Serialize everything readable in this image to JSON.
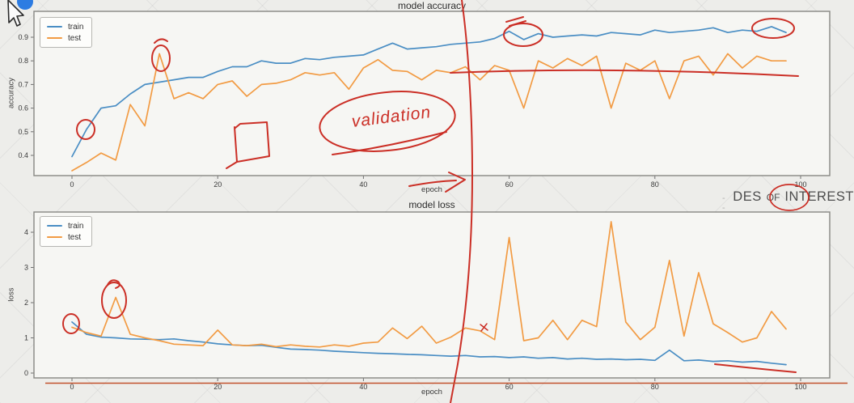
{
  "watermark": {
    "dashes": "- -",
    "word1": "DES",
    "word2": "OF",
    "word3": "INTEREST"
  },
  "annotations": {
    "validation_text": "validation"
  },
  "colors": {
    "train": "#4a8ec4",
    "test": "#f29b43",
    "ink": "#cb2f26",
    "underline": "#c2512c"
  },
  "chart_data": [
    {
      "type": "line",
      "title": "model accuracy",
      "xlabel": "epoch",
      "ylabel": "accuracy",
      "x_ticks": [
        0,
        20,
        40,
        60,
        80,
        100
      ],
      "y_ticks": [
        0.4,
        0.5,
        0.6,
        0.7,
        0.8,
        0.9
      ],
      "xlim": [
        -5,
        104
      ],
      "ylim": [
        0.32,
        1.01
      ],
      "grid": false,
      "legend": {
        "position": "upper left"
      },
      "x_step": 2,
      "series": [
        {
          "name": "train",
          "color": "#4a8ec4",
          "values": [
            0.395,
            0.51,
            0.6,
            0.61,
            0.66,
            0.7,
            0.71,
            0.72,
            0.73,
            0.73,
            0.755,
            0.775,
            0.775,
            0.8,
            0.79,
            0.79,
            0.81,
            0.805,
            0.815,
            0.82,
            0.825,
            0.85,
            0.875,
            0.85,
            0.855,
            0.86,
            0.87,
            0.875,
            0.88,
            0.895,
            0.925,
            0.89,
            0.915,
            0.9,
            0.905,
            0.91,
            0.905,
            0.92,
            0.915,
            0.91,
            0.93,
            0.92,
            0.925,
            0.93,
            0.94,
            0.92,
            0.93,
            0.925,
            0.945,
            0.92
          ]
        },
        {
          "name": "test",
          "color": "#f29b43",
          "values": [
            0.335,
            0.37,
            0.41,
            0.38,
            0.615,
            0.525,
            0.83,
            0.64,
            0.665,
            0.64,
            0.7,
            0.715,
            0.65,
            0.7,
            0.705,
            0.72,
            0.75,
            0.74,
            0.75,
            0.68,
            0.77,
            0.805,
            0.76,
            0.755,
            0.72,
            0.76,
            0.75,
            0.775,
            0.72,
            0.78,
            0.76,
            0.6,
            0.8,
            0.77,
            0.81,
            0.78,
            0.82,
            0.6,
            0.79,
            0.76,
            0.8,
            0.64,
            0.8,
            0.82,
            0.74,
            0.83,
            0.77,
            0.82,
            0.8,
            0.8
          ]
        }
      ]
    },
    {
      "type": "line",
      "title": "model loss",
      "xlabel": "epoch",
      "ylabel": "loss",
      "x_ticks": [
        0,
        20,
        40,
        60,
        80,
        100
      ],
      "y_ticks": [
        0,
        1,
        2,
        3,
        4
      ],
      "xlim": [
        -5,
        104
      ],
      "ylim": [
        -0.14,
        4.57
      ],
      "grid": false,
      "legend": {
        "position": "upper left"
      },
      "x_step": 2,
      "series": [
        {
          "name": "train",
          "color": "#4a8ec4",
          "values": [
            1.45,
            1.1,
            1.02,
            1.0,
            0.97,
            0.96,
            0.95,
            0.97,
            0.92,
            0.88,
            0.83,
            0.8,
            0.78,
            0.79,
            0.73,
            0.68,
            0.67,
            0.65,
            0.62,
            0.6,
            0.58,
            0.56,
            0.55,
            0.53,
            0.52,
            0.5,
            0.48,
            0.5,
            0.46,
            0.47,
            0.44,
            0.46,
            0.42,
            0.44,
            0.4,
            0.42,
            0.39,
            0.4,
            0.38,
            0.39,
            0.36,
            0.65,
            0.35,
            0.37,
            0.33,
            0.35,
            0.31,
            0.33,
            0.28,
            0.24
          ]
        },
        {
          "name": "test",
          "color": "#f29b43",
          "values": [
            1.3,
            1.15,
            1.05,
            2.15,
            1.1,
            1.0,
            0.92,
            0.82,
            0.8,
            0.78,
            1.22,
            0.8,
            0.78,
            0.82,
            0.75,
            0.8,
            0.76,
            0.74,
            0.8,
            0.76,
            0.85,
            0.88,
            1.28,
            0.98,
            1.33,
            0.85,
            1.02,
            1.28,
            1.2,
            0.95,
            3.85,
            0.92,
            1.0,
            1.5,
            0.95,
            1.5,
            1.32,
            4.3,
            1.45,
            0.95,
            1.3,
            3.2,
            1.05,
            2.85,
            1.4,
            1.15,
            0.88,
            1.0,
            1.75,
            1.25
          ]
        }
      ]
    }
  ]
}
